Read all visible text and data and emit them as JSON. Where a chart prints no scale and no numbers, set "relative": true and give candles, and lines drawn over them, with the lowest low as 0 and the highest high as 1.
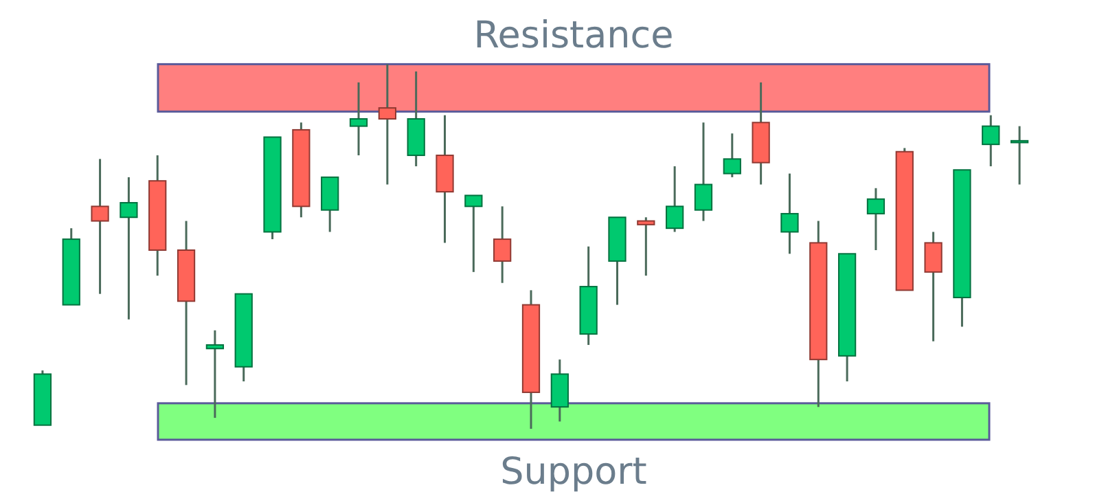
{
  "chart_data": {
    "type": "candlestick",
    "relative": true,
    "categories": [
      null,
      null,
      null,
      null,
      null,
      null,
      null,
      null,
      null,
      null,
      null,
      null,
      null,
      null,
      null,
      null,
      null,
      null,
      null,
      null,
      null,
      null,
      null,
      null,
      null,
      null,
      null,
      null,
      null,
      null,
      null,
      null,
      null,
      null,
      null
    ],
    "ohlc": [
      [
        0.01,
        0.16,
        0.01,
        0.15
      ],
      [
        0.34,
        0.55,
        0.34,
        0.52
      ],
      [
        0.61,
        0.74,
        0.37,
        0.57
      ],
      [
        0.58,
        0.69,
        0.3,
        0.62
      ],
      [
        0.68,
        0.75,
        0.42,
        0.49
      ],
      [
        0.49,
        0.57,
        0.12,
        0.35
      ],
      [
        0.22,
        0.27,
        0.03,
        0.23
      ],
      [
        0.17,
        0.37,
        0.13,
        0.37
      ],
      [
        0.54,
        0.8,
        0.52,
        0.8
      ],
      [
        0.82,
        0.84,
        0.58,
        0.61
      ],
      [
        0.6,
        0.69,
        0.54,
        0.69
      ],
      [
        0.83,
        0.95,
        0.75,
        0.85
      ],
      [
        0.88,
        1.0,
        0.67,
        0.85
      ],
      [
        0.75,
        0.98,
        0.72,
        0.85
      ],
      [
        0.75,
        0.86,
        0.51,
        0.65
      ],
      [
        0.61,
        0.64,
        0.43,
        0.64
      ],
      [
        0.52,
        0.61,
        0.4,
        0.46
      ],
      [
        0.34,
        0.38,
        0.0,
        0.1
      ],
      [
        0.06,
        0.19,
        0.02,
        0.15
      ],
      [
        0.26,
        0.5,
        0.23,
        0.39
      ],
      [
        0.46,
        0.58,
        0.34,
        0.58
      ],
      [
        0.57,
        0.58,
        0.42,
        0.56
      ],
      [
        0.55,
        0.72,
        0.54,
        0.61
      ],
      [
        0.6,
        0.84,
        0.57,
        0.67
      ],
      [
        0.7,
        0.81,
        0.69,
        0.74
      ],
      [
        0.84,
        0.95,
        0.67,
        0.73
      ],
      [
        0.54,
        0.7,
        0.48,
        0.59
      ],
      [
        0.51,
        0.57,
        0.06,
        0.19
      ],
      [
        0.2,
        0.48,
        0.13,
        0.48
      ],
      [
        0.59,
        0.66,
        0.49,
        0.63
      ],
      [
        0.76,
        0.77,
        0.38,
        0.38
      ],
      [
        0.51,
        0.54,
        0.24,
        0.43
      ],
      [
        0.36,
        0.71,
        0.28,
        0.71
      ],
      [
        0.78,
        0.86,
        0.72,
        0.83
      ],
      [
        0.785,
        0.83,
        0.67,
        0.79
      ]
    ],
    "colors": [
      "#00c96f",
      "#00c96f",
      "#ff6459",
      "#00c96f",
      "#ff6459",
      "#ff6459",
      "#00c96f",
      "#00c96f",
      "#00c96f",
      "#ff6459",
      "#00c96f",
      "#00c96f",
      "#ff6459",
      "#00c96f",
      "#ff6459",
      "#00c96f",
      "#ff6459",
      "#ff6459",
      "#00c96f",
      "#00c96f",
      "#00c96f",
      "#ff6459",
      "#00c96f",
      "#00c96f",
      "#00c96f",
      "#ff6459",
      "#00c96f",
      "#ff6459",
      "#00c96f",
      "#00c96f",
      "#ff6459",
      "#ff6459",
      "#00c96f",
      "#00c96f",
      "#00c96f"
    ],
    "bands": [
      {
        "axis": "y",
        "from": 0.87,
        "to": 1.0,
        "label": "Resistance",
        "color": "#ff7f7f"
      },
      {
        "axis": "y",
        "from": -0.03,
        "to": 0.07,
        "label": "Support",
        "color": "#80ff80"
      }
    ]
  }
}
